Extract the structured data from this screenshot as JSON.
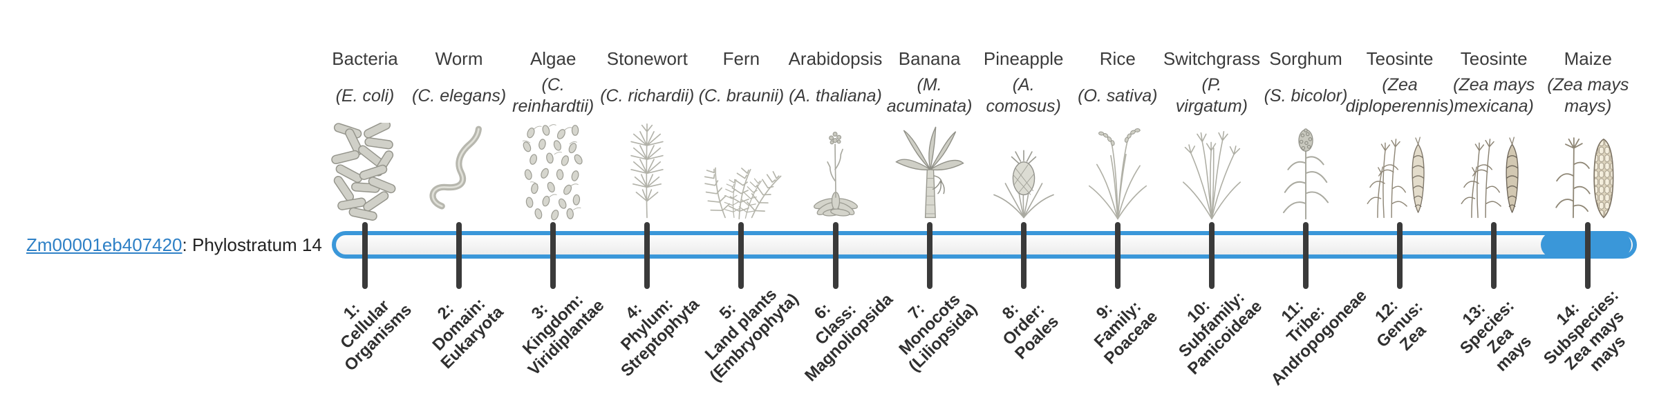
{
  "gene": {
    "id": "Zm00001eb407420",
    "suffix": ": Phylostratum 14"
  },
  "colors": {
    "bar_outline": "#3a97d9",
    "bar_fill": "#3a97d9",
    "tick": "#3a3a3a",
    "text": "#3b3b3b",
    "link": "#2e80c6"
  },
  "chart_data": {
    "type": "bar",
    "title": "",
    "gene_id": "Zm00001eb407420",
    "gene_phylostratum": 14,
    "strata_count": 14,
    "highlighted_stratum": 14,
    "strata": [
      {
        "index": 1,
        "rank_label": "1: Cellular Organisms",
        "label_lines": [
          "1:",
          "Cellular",
          "Organisms"
        ],
        "organism": "Bacteria",
        "species": "(E. coli)",
        "species_lines": [
          "(E. coli)"
        ],
        "icon": "bacteria-icon",
        "highlighted": false
      },
      {
        "index": 2,
        "rank_label": "2: Domain: Eukaryota",
        "label_lines": [
          "2:",
          "Domain:",
          "Eukaryota"
        ],
        "organism": "Worm",
        "species": "(C. elegans)",
        "species_lines": [
          "(C. elegans)"
        ],
        "icon": "worm-icon",
        "highlighted": false
      },
      {
        "index": 3,
        "rank_label": "3: Kingdom: Viridiplantae",
        "label_lines": [
          "3:",
          "Kingdom:",
          "Viridiplantae"
        ],
        "organism": "Algae",
        "species": "(C. reinhardtii)",
        "species_lines": [
          "(C.",
          "reinhardtii)"
        ],
        "icon": "algae-icon",
        "highlighted": false
      },
      {
        "index": 4,
        "rank_label": "4: Phylum: Streptophyta",
        "label_lines": [
          "4:",
          "Phylum:",
          "Streptophyta"
        ],
        "organism": "Stonewort",
        "species": "(C. richardii)",
        "species_lines": [
          "(C. richardii)"
        ],
        "icon": "stonewort-icon",
        "highlighted": false
      },
      {
        "index": 5,
        "rank_label": "5: Land plants (Embryophyta)",
        "label_lines": [
          "5:",
          "Land plants",
          "(Embryophyta)"
        ],
        "organism": "Fern",
        "species": "(C. braunii)",
        "species_lines": [
          "(C. braunii)"
        ],
        "icon": "fern-icon",
        "highlighted": false
      },
      {
        "index": 6,
        "rank_label": "6: Class: Magnoliopsida",
        "label_lines": [
          "6:",
          "Class:",
          "Magnoliopsida"
        ],
        "organism": "Arabidopsis",
        "species": "(A. thaliana)",
        "species_lines": [
          "(A. thaliana)"
        ],
        "icon": "arabidopsis-icon",
        "highlighted": false
      },
      {
        "index": 7,
        "rank_label": "7: Monocots (Liliopsida)",
        "label_lines": [
          "7:",
          "Monocots",
          "(Liliopsida)"
        ],
        "organism": "Banana",
        "species": "(M. acuminata)",
        "species_lines": [
          "(M.",
          "acuminata)"
        ],
        "icon": "banana-icon",
        "highlighted": false
      },
      {
        "index": 8,
        "rank_label": "8: Order: Poales",
        "label_lines": [
          "8:",
          "Order:",
          "Poales"
        ],
        "organism": "Pineapple",
        "species": "(A. comosus)",
        "species_lines": [
          "(A.",
          "comosus)"
        ],
        "icon": "pineapple-icon",
        "highlighted": false
      },
      {
        "index": 9,
        "rank_label": "9: Family: Poaceae",
        "label_lines": [
          "9:",
          "Family:",
          "Poaceae"
        ],
        "organism": "Rice",
        "species": "(O. sativa)",
        "species_lines": [
          "(O. sativa)"
        ],
        "icon": "rice-icon",
        "highlighted": false
      },
      {
        "index": 10,
        "rank_label": "10: Subfamily: Panicoideae",
        "label_lines": [
          "10:",
          "Subfamily:",
          "Panicoideae"
        ],
        "organism": "Switchgrass",
        "species": "(P. virgatum)",
        "species_lines": [
          "(P.",
          "virgatum)"
        ],
        "icon": "switchgrass-icon",
        "highlighted": false
      },
      {
        "index": 11,
        "rank_label": "11: Tribe: Andropogoneae",
        "label_lines": [
          "11:",
          "Tribe:",
          "Andropogoneae"
        ],
        "organism": "Sorghum",
        "species": "(S. bicolor)",
        "species_lines": [
          "(S. bicolor)"
        ],
        "icon": "sorghum-icon",
        "highlighted": false
      },
      {
        "index": 12,
        "rank_label": "12: Genus: Zea",
        "label_lines": [
          "12:",
          "Genus:",
          "Zea"
        ],
        "organism": "Teosinte",
        "species": "(Zea diploperennis)",
        "species_lines": [
          "(Zea",
          "diploperennis)"
        ],
        "icon": "teosinte-diploperennis-icon",
        "highlighted": false
      },
      {
        "index": 13,
        "rank_label": "13: Species: Zea mays",
        "label_lines": [
          "13:",
          "Species:",
          "Zea",
          "mays"
        ],
        "organism": "Teosinte",
        "species": "(Zea mays mexicana)",
        "species_lines": [
          "(Zea mays",
          "mexicana)"
        ],
        "icon": "teosinte-mexicana-icon",
        "highlighted": false
      },
      {
        "index": 14,
        "rank_label": "14: Subspecies: Zea mays mays",
        "label_lines": [
          "14:",
          "Subspecies:",
          "Zea mays",
          "mays"
        ],
        "organism": "Maize",
        "species": "(Zea mays mays)",
        "species_lines": [
          "(Zea mays",
          "mays)"
        ],
        "icon": "maize-icon",
        "highlighted": true
      }
    ]
  }
}
